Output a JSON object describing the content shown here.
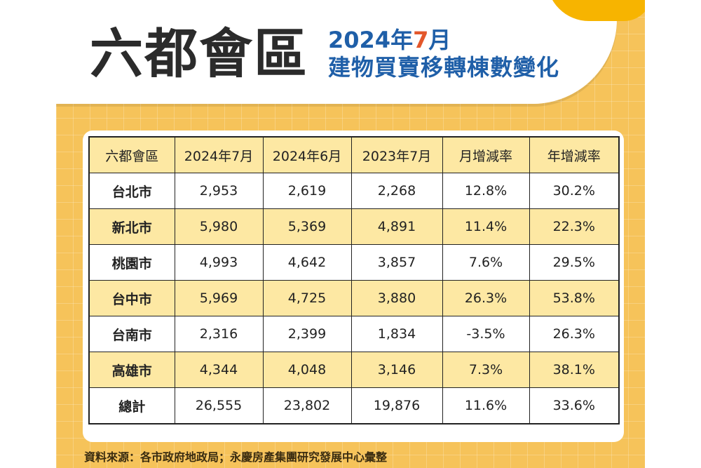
{
  "header": {
    "title": "六都會區",
    "subtitle_prefix": "2024年",
    "subtitle_month": "7",
    "subtitle_suffix": "月",
    "subtitle_line2": "建物買賣移轉棟數變化"
  },
  "table": {
    "columns": [
      "六都會區",
      "2024年7月",
      "2024年6月",
      "2023年7月",
      "月增減率",
      "年增減率"
    ],
    "rows": [
      [
        "台北市",
        "2,953",
        "2,619",
        "2,268",
        "12.8%",
        "30.2%"
      ],
      [
        "新北市",
        "5,980",
        "5,369",
        "4,891",
        "11.4%",
        "22.3%"
      ],
      [
        "桃園市",
        "4,993",
        "4,642",
        "3,857",
        "7.6%",
        "29.5%"
      ],
      [
        "台中市",
        "5,969",
        "4,725",
        "3,880",
        "26.3%",
        "53.8%"
      ],
      [
        "台南市",
        "2,316",
        "2,399",
        "1,834",
        "-3.5%",
        "26.3%"
      ],
      [
        "高雄市",
        "4,344",
        "4,048",
        "3,146",
        "7.3%",
        "38.1%"
      ],
      [
        "總計",
        "26,555",
        "23,802",
        "19,876",
        "11.6%",
        "33.6%"
      ]
    ]
  },
  "source": "資料來源：各市政府地政局；永慶房產集團研究發展中心彙整",
  "colors": {
    "background": "#f6c35a",
    "accent_blue": "#1f5fa8",
    "accent_orange": "#e3572b",
    "row_highlight": "#fde8a3"
  }
}
